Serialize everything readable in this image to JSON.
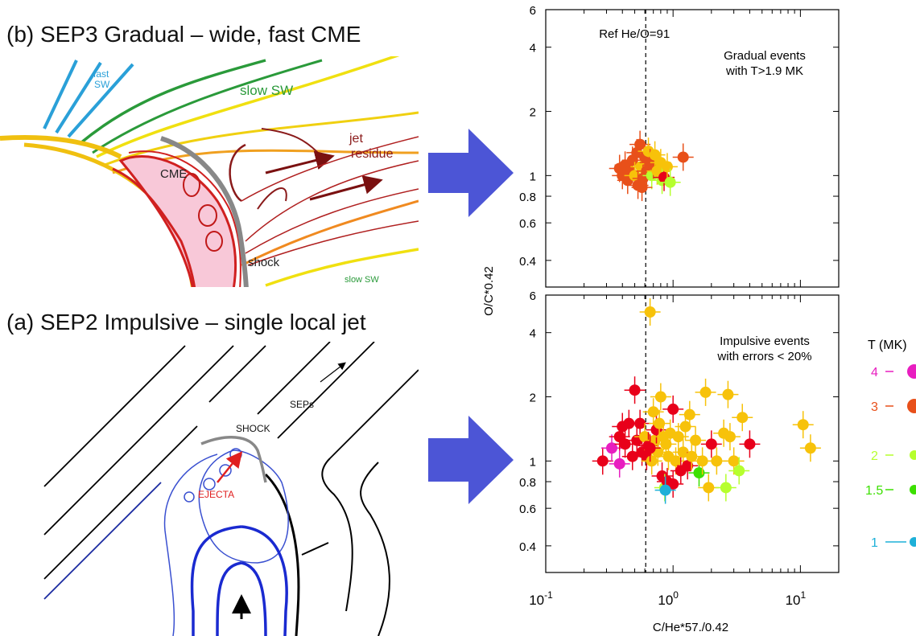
{
  "panel_b": {
    "title": "(b) SEP3 Gradual – wide, fast CME",
    "labels": {
      "fast_sw_1": "fast",
      "fast_sw_2": "SW",
      "slow_sw": "slow SW",
      "jet_1": "jet",
      "jet_2": "residue",
      "cme": "CME",
      "shock": "shock",
      "slow_sw_bottom": "slow SW"
    }
  },
  "panel_a": {
    "title": "(a) SEP2 Impulsive – single local jet",
    "labels": {
      "seps": "SEPs",
      "shock": "SHOCK",
      "ejecta": "EJECTA"
    }
  },
  "colors": {
    "arrow": "#4c55d6",
    "t4": "#e81ec0",
    "t3": "#e8501a",
    "t3b": "#e8001a",
    "t2": "#b6ff2e",
    "t25": "#f7c20a",
    "t15": "#3ce000",
    "t1": "#1eb0d8"
  },
  "chart_data": {
    "type": "scatter",
    "xlabel": "C/He*57./0.42",
    "ylabel": "O/C*0.42",
    "xscale": "log",
    "yscale": "log",
    "xlim": [
      0.1,
      20
    ],
    "ylim": [
      0.3,
      6
    ],
    "x_ticks": [
      "10-1",
      "100",
      "101"
    ],
    "y_ticks": [
      "0.4",
      "0.6",
      "0.8",
      "1",
      "2",
      "4",
      "6"
    ],
    "reference_line": {
      "x": 0.61,
      "label": "Ref He/O=91"
    },
    "legend": {
      "title": "T (MK)",
      "entries": [
        {
          "label": "4",
          "color": "#e81ec0"
        },
        {
          "label": "3",
          "color": "#e8501a"
        },
        {
          "label": "2",
          "color": "#b6ff2e"
        },
        {
          "label": "1.5",
          "color": "#3ce000"
        },
        {
          "label": "1",
          "color": "#1eb0d8"
        }
      ]
    },
    "panels": [
      {
        "name": "gradual",
        "annotation_1": "Gradual events",
        "annotation_2": "with T>1.9 MK",
        "points": [
          {
            "x": 0.38,
            "y": 1.08,
            "c": "t3"
          },
          {
            "x": 0.4,
            "y": 1.0,
            "c": "t3"
          },
          {
            "x": 0.42,
            "y": 1.12,
            "c": "t3"
          },
          {
            "x": 0.44,
            "y": 0.95,
            "c": "t3"
          },
          {
            "x": 0.46,
            "y": 1.05,
            "c": "t3"
          },
          {
            "x": 0.48,
            "y": 1.18,
            "c": "t3"
          },
          {
            "x": 0.5,
            "y": 1.0,
            "c": "t25"
          },
          {
            "x": 0.52,
            "y": 1.28,
            "c": "t3"
          },
          {
            "x": 0.53,
            "y": 0.9,
            "c": "t3"
          },
          {
            "x": 0.55,
            "y": 1.4,
            "c": "t3"
          },
          {
            "x": 0.56,
            "y": 1.1,
            "c": "t25"
          },
          {
            "x": 0.58,
            "y": 0.97,
            "c": "t3"
          },
          {
            "x": 0.6,
            "y": 1.22,
            "c": "t3"
          },
          {
            "x": 0.62,
            "y": 1.05,
            "c": "t3"
          },
          {
            "x": 0.64,
            "y": 1.3,
            "c": "t25"
          },
          {
            "x": 0.66,
            "y": 1.15,
            "c": "t3"
          },
          {
            "x": 0.68,
            "y": 1.0,
            "c": "t2"
          },
          {
            "x": 0.7,
            "y": 1.12,
            "c": "t3"
          },
          {
            "x": 0.72,
            "y": 1.25,
            "c": "t25"
          },
          {
            "x": 0.75,
            "y": 1.05,
            "c": "t25"
          },
          {
            "x": 0.8,
            "y": 1.15,
            "c": "t25"
          },
          {
            "x": 0.82,
            "y": 0.95,
            "c": "t2"
          },
          {
            "x": 0.85,
            "y": 0.98,
            "c": "t3b"
          },
          {
            "x": 0.9,
            "y": 1.1,
            "c": "t25"
          },
          {
            "x": 0.95,
            "y": 0.93,
            "c": "t2"
          },
          {
            "x": 1.2,
            "y": 1.22,
            "c": "t3"
          },
          {
            "x": 0.57,
            "y": 0.88,
            "c": "t3"
          }
        ]
      },
      {
        "name": "impulsive",
        "annotation_1": "Impulsive events",
        "annotation_2": "with errors < 20%",
        "points": [
          {
            "x": 0.28,
            "y": 1.0,
            "c": "t3b"
          },
          {
            "x": 0.33,
            "y": 1.15,
            "c": "t4"
          },
          {
            "x": 0.38,
            "y": 0.97,
            "c": "t4"
          },
          {
            "x": 0.38,
            "y": 1.3,
            "c": "t3b"
          },
          {
            "x": 0.4,
            "y": 1.45,
            "c": "t3b"
          },
          {
            "x": 0.42,
            "y": 1.2,
            "c": "t3b"
          },
          {
            "x": 0.45,
            "y": 1.5,
            "c": "t3b"
          },
          {
            "x": 0.48,
            "y": 1.05,
            "c": "t3b"
          },
          {
            "x": 0.5,
            "y": 2.15,
            "c": "t3b"
          },
          {
            "x": 0.52,
            "y": 1.25,
            "c": "t3b"
          },
          {
            "x": 0.55,
            "y": 1.5,
            "c": "t3b"
          },
          {
            "x": 0.57,
            "y": 1.1,
            "c": "t3b"
          },
          {
            "x": 0.6,
            "y": 1.3,
            "c": "t25"
          },
          {
            "x": 0.62,
            "y": 1.05,
            "c": "t3b"
          },
          {
            "x": 0.64,
            "y": 1.18,
            "c": "t3b"
          },
          {
            "x": 0.66,
            "y": 5.0,
            "c": "t25"
          },
          {
            "x": 0.68,
            "y": 1.0,
            "c": "t25"
          },
          {
            "x": 0.7,
            "y": 1.7,
            "c": "t25"
          },
          {
            "x": 0.72,
            "y": 1.25,
            "c": "t25"
          },
          {
            "x": 0.74,
            "y": 1.4,
            "c": "t3b"
          },
          {
            "x": 0.76,
            "y": 1.1,
            "c": "t25"
          },
          {
            "x": 0.78,
            "y": 1.5,
            "c": "t25"
          },
          {
            "x": 0.8,
            "y": 2.0,
            "c": "t25"
          },
          {
            "x": 0.82,
            "y": 0.85,
            "c": "t3b"
          },
          {
            "x": 0.84,
            "y": 1.3,
            "c": "t25"
          },
          {
            "x": 0.86,
            "y": 0.75,
            "c": "t2"
          },
          {
            "x": 0.88,
            "y": 1.2,
            "c": "t25"
          },
          {
            "x": 0.9,
            "y": 0.8,
            "c": "t3b"
          },
          {
            "x": 0.92,
            "y": 1.05,
            "c": "t25"
          },
          {
            "x": 0.95,
            "y": 1.35,
            "c": "t25"
          },
          {
            "x": 1.0,
            "y": 1.75,
            "c": "t3b"
          },
          {
            "x": 1.0,
            "y": 0.78,
            "c": "t3b"
          },
          {
            "x": 1.05,
            "y": 1.0,
            "c": "t25"
          },
          {
            "x": 1.1,
            "y": 1.3,
            "c": "t25"
          },
          {
            "x": 1.15,
            "y": 0.9,
            "c": "t3b"
          },
          {
            "x": 1.2,
            "y": 1.1,
            "c": "t25"
          },
          {
            "x": 1.25,
            "y": 1.45,
            "c": "t25"
          },
          {
            "x": 1.3,
            "y": 0.95,
            "c": "t3b"
          },
          {
            "x": 1.35,
            "y": 1.65,
            "c": "t25"
          },
          {
            "x": 1.4,
            "y": 1.05,
            "c": "t25"
          },
          {
            "x": 1.5,
            "y": 1.25,
            "c": "t25"
          },
          {
            "x": 1.6,
            "y": 0.88,
            "c": "t15"
          },
          {
            "x": 1.7,
            "y": 1.0,
            "c": "t25"
          },
          {
            "x": 1.8,
            "y": 2.1,
            "c": "t25"
          },
          {
            "x": 1.9,
            "y": 0.75,
            "c": "t25"
          },
          {
            "x": 2.0,
            "y": 1.2,
            "c": "t3b"
          },
          {
            "x": 2.2,
            "y": 1.0,
            "c": "t25"
          },
          {
            "x": 2.5,
            "y": 1.35,
            "c": "t25"
          },
          {
            "x": 2.7,
            "y": 2.05,
            "c": "t25"
          },
          {
            "x": 2.8,
            "y": 1.3,
            "c": "t25"
          },
          {
            "x": 3.0,
            "y": 1.0,
            "c": "t25"
          },
          {
            "x": 3.3,
            "y": 0.9,
            "c": "t2"
          },
          {
            "x": 3.5,
            "y": 1.6,
            "c": "t25"
          },
          {
            "x": 4.0,
            "y": 1.2,
            "c": "t3b"
          },
          {
            "x": 2.6,
            "y": 0.75,
            "c": "t2"
          },
          {
            "x": 10.5,
            "y": 1.48,
            "c": "t25"
          },
          {
            "x": 12.0,
            "y": 1.15,
            "c": "t25"
          },
          {
            "x": 0.87,
            "y": 0.73,
            "c": "t1"
          },
          {
            "x": 0.66,
            "y": 1.15,
            "c": "t3b"
          }
        ]
      }
    ]
  }
}
